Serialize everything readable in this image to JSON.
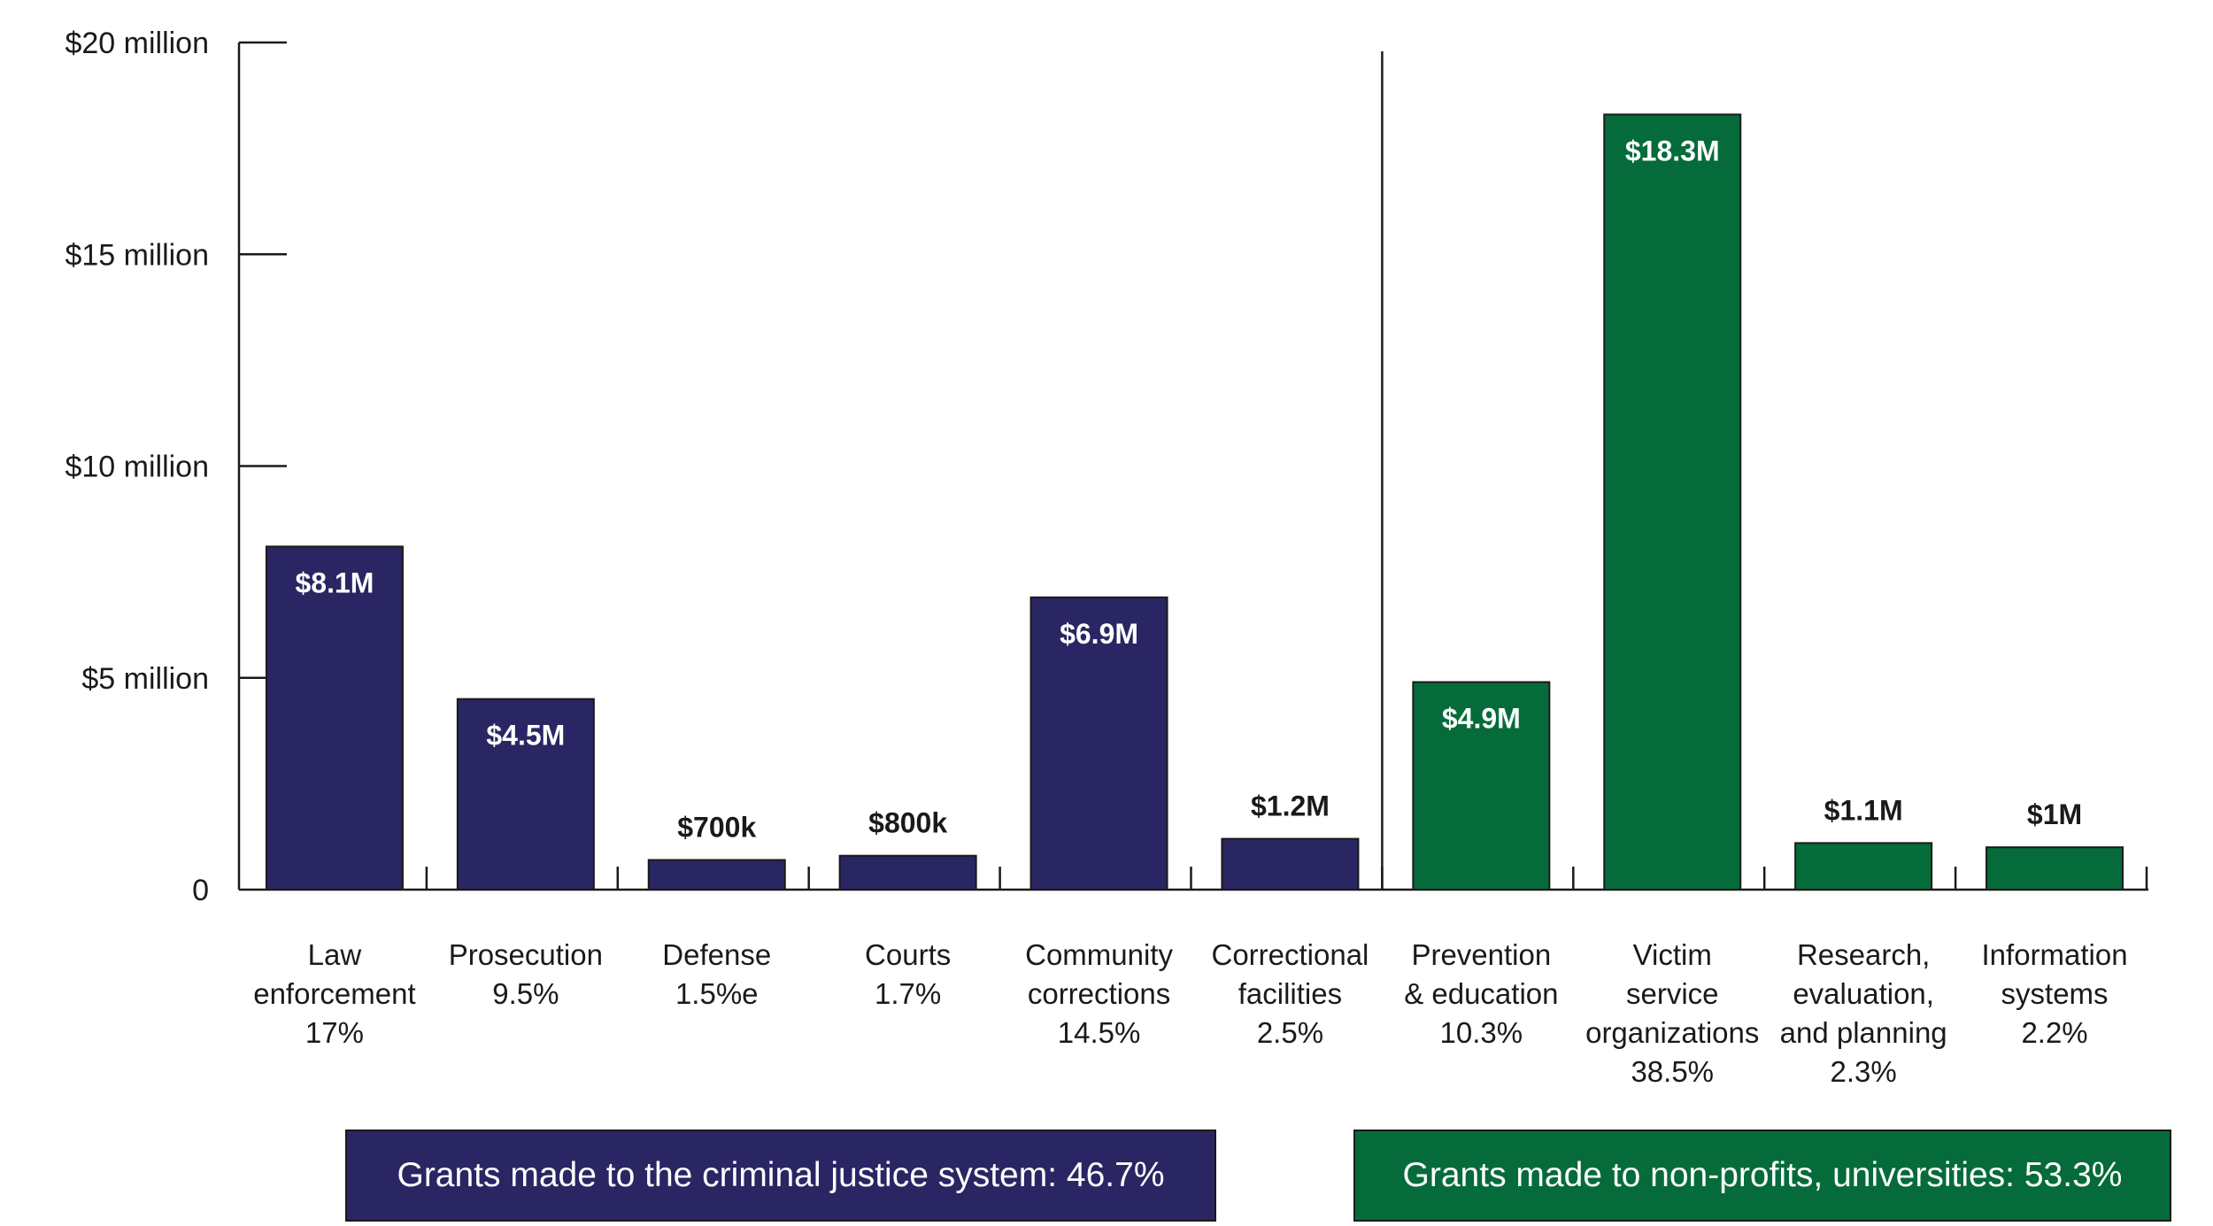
{
  "chart_data": {
    "type": "bar",
    "title": "",
    "xlabel": "",
    "ylabel": "",
    "ylim": [
      0,
      20
    ],
    "yticks": [
      {
        "value": 0,
        "label": "0"
      },
      {
        "value": 5,
        "label": "$5 million"
      },
      {
        "value": 10,
        "label": "$10 million"
      },
      {
        "value": 15,
        "label": "$15 million"
      },
      {
        "value": 20,
        "label": "$20 million"
      }
    ],
    "grid": false,
    "categories": [
      {
        "lines": [
          "Law",
          "enforcement",
          "17%"
        ],
        "value": 8.1,
        "value_label": "$8.1M",
        "group": "criminal_justice",
        "label_position": "inside"
      },
      {
        "lines": [
          "Prosecution",
          "9.5%"
        ],
        "value": 4.5,
        "value_label": "$4.5M",
        "group": "criminal_justice",
        "label_position": "inside"
      },
      {
        "lines": [
          "Defense",
          "1.5%e"
        ],
        "value": 0.7,
        "value_label": "$700k",
        "group": "criminal_justice",
        "label_position": "above"
      },
      {
        "lines": [
          "Courts",
          "1.7%"
        ],
        "value": 0.8,
        "value_label": "$800k",
        "group": "criminal_justice",
        "label_position": "above"
      },
      {
        "lines": [
          "Community",
          "corrections",
          "14.5%"
        ],
        "value": 6.9,
        "value_label": "$6.9M",
        "group": "criminal_justice",
        "label_position": "inside"
      },
      {
        "lines": [
          "Correctional",
          "facilities",
          "2.5%"
        ],
        "value": 1.2,
        "value_label": "$1.2M",
        "group": "criminal_justice",
        "label_position": "above"
      },
      {
        "lines": [
          "Prevention",
          "& education",
          "10.3%"
        ],
        "value": 4.9,
        "value_label": "$4.9M",
        "group": "non_profit",
        "label_position": "inside"
      },
      {
        "lines": [
          "Victim",
          "service",
          "organizations",
          "38.5%"
        ],
        "value": 18.3,
        "value_label": "$18.3M",
        "group": "non_profit",
        "label_position": "inside"
      },
      {
        "lines": [
          "Research,",
          "evaluation,",
          "and planning",
          "2.3%"
        ],
        "value": 1.1,
        "value_label": "$1.1M",
        "group": "non_profit",
        "label_position": "above"
      },
      {
        "lines": [
          "Information",
          "systems",
          "2.2%"
        ],
        "value": 1.0,
        "value_label": "$1M",
        "group": "non_profit",
        "label_position": "above"
      }
    ],
    "groups": {
      "criminal_justice": {
        "color": "#2a2663",
        "legend": "Grants made to the criminal justice system: 46.7%"
      },
      "non_profit": {
        "color": "#066b3a",
        "legend": "Grants made to non-profits, universities: 53.3%"
      }
    },
    "legend_position": "bottom"
  }
}
